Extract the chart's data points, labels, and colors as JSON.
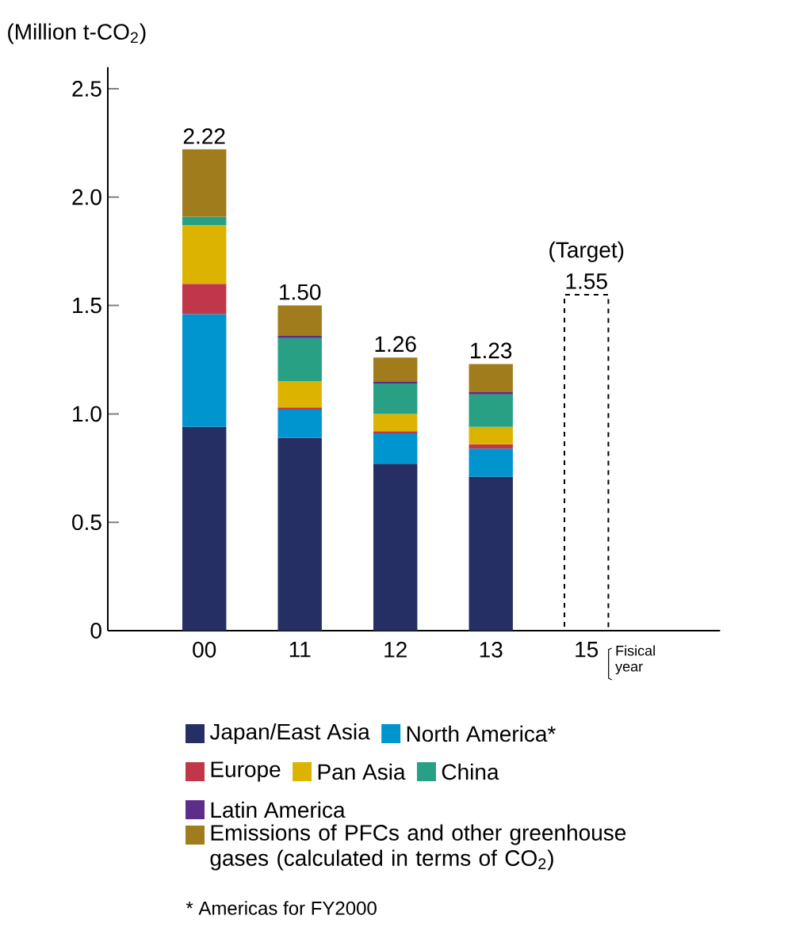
{
  "chart_data": {
    "type": "bar",
    "stacked": true,
    "ylabel": "(Million t-CO$_{2}$)",
    "xlabel": "Fisical year",
    "categories": [
      "00",
      "11",
      "12",
      "13",
      "15"
    ],
    "series": [
      {
        "name": "Japan/East Asia",
        "color": "#252f63",
        "values": [
          0.94,
          0.89,
          0.77,
          0.71,
          null
        ]
      },
      {
        "name": "North America*",
        "color": "#0095cf",
        "values": [
          0.52,
          0.13,
          0.14,
          0.13,
          null
        ]
      },
      {
        "name": "Europe",
        "color": "#c0374a",
        "values": [
          0.14,
          0.01,
          0.01,
          0.02,
          null
        ]
      },
      {
        "name": "Pan Asia",
        "color": "#dcb400",
        "values": [
          0.27,
          0.12,
          0.08,
          0.08,
          null
        ]
      },
      {
        "name": "China",
        "color": "#27a083",
        "values": [
          0.04,
          0.2,
          0.14,
          0.15,
          null
        ]
      },
      {
        "name": "Latin America",
        "color": "#5c2d8a",
        "values": [
          null,
          0.01,
          0.01,
          0.01,
          null
        ]
      },
      {
        "name": "Emissions of PFCs and other greenhouse gases (calculated in terms of CO$_{2}$)",
        "color": "#a07c1c",
        "values": [
          0.31,
          0.14,
          0.11,
          0.13,
          null
        ]
      },
      {
        "type": "bar",
        "color": "#000000",
        "line_style": "dashed",
        "values": [
          null,
          null,
          null,
          null,
          1.55
        ]
      }
    ],
    "totals": [
      "2.22",
      "1.50",
      "1.26",
      "1.23",
      "1.55"
    ],
    "ylim": [
      0,
      2.6
    ],
    "yticks": [
      0,
      0.5,
      {
        "value": 1,
        "label": "1.0"
      },
      1.5,
      {
        "value": 2,
        "label": "2.0"
      },
      2.5
    ],
    "legend": "bottom",
    "annotations": [
      {
        "text": "(Target)",
        "x": "15",
        "y": 1.55
      },
      "* Americas for FY2000"
    ]
  }
}
